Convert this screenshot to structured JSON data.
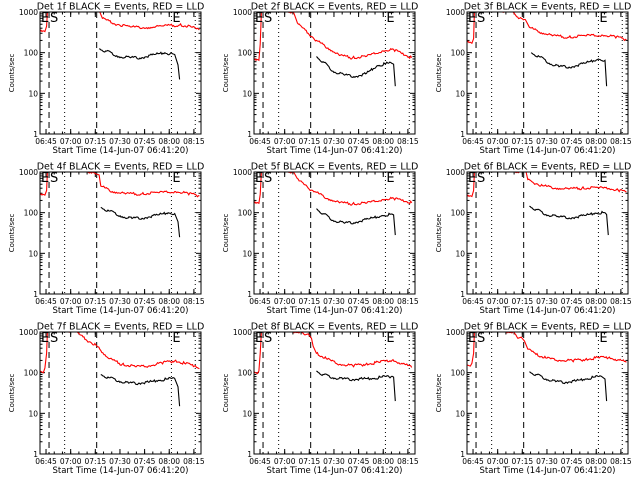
{
  "chart_data": [
    {
      "type": "line",
      "title": "Det 1f BLACK = Events, RED = LLD",
      "xlabel": "Start Time (14-Jun-07 06:41:20)",
      "ylabel": "Counts/sec",
      "yscale": "log",
      "ylim": [
        1,
        1000
      ],
      "ytick_labels": [
        "1",
        "10",
        "100",
        "1000"
      ],
      "xtick_labels": [
        "06:45",
        "07:00",
        "07:15",
        "07:30",
        "07:45",
        "08:00",
        "08:15"
      ],
      "series": [
        {
          "name": "LLD",
          "color": "#ff0000",
          "x_min": [
            0,
            3,
            4,
            4.5,
            5,
            36,
            38,
            45,
            55,
            65,
            75,
            85,
            92,
            97
          ],
          "values": [
            330,
            330,
            450,
            1000,
            1200,
            1100,
            700,
            520,
            430,
            410,
            450,
            480,
            430,
            360
          ]
        },
        {
          "name": "Events",
          "color": "#000000",
          "x_min": [
            36,
            40,
            48,
            55,
            62,
            70,
            76,
            79,
            82,
            84,
            85
          ],
          "values": [
            125,
            110,
            80,
            75,
            75,
            90,
            100,
            92,
            90,
            50,
            22
          ]
        }
      ],
      "markers": {
        "E_left": "E",
        "S": "S",
        "E_right": "E"
      }
    },
    {
      "type": "line",
      "title": "Det 2f BLACK = Events, RED = LLD",
      "xlabel": "Start Time (14-Jun-07 06:41:20)",
      "ylabel": "Counts/sec",
      "yscale": "log",
      "ylim": [
        1,
        1000
      ],
      "ytick_labels": [
        "1",
        "10",
        "100",
        "1000"
      ],
      "xtick_labels": [
        "06:45",
        "07:00",
        "07:15",
        "07:30",
        "07:45",
        "08:00",
        "08:15"
      ],
      "series": [
        {
          "name": "LLD",
          "color": "#ff0000",
          "x_min": [
            0,
            3,
            3.8,
            4.5,
            5,
            24,
            27,
            33,
            38,
            45,
            52,
            60,
            68,
            78,
            85,
            90,
            96
          ],
          "values": [
            65,
            65,
            160,
            1000,
            1200,
            1000,
            500,
            300,
            200,
            130,
            85,
            75,
            80,
            110,
            120,
            95,
            75
          ]
        },
        {
          "name": "Events",
          "color": "#000000",
          "x_min": [
            38,
            42,
            48,
            55,
            62,
            68,
            75,
            82,
            85,
            86
          ],
          "values": [
            80,
            60,
            35,
            28,
            26,
            30,
            48,
            55,
            52,
            15
          ]
        }
      ],
      "markers": {
        "E_left": "E",
        "S": "S",
        "E_right": "E"
      }
    },
    {
      "type": "line",
      "title": "Det 3f BLACK = Events, RED = LLD",
      "xlabel": "Start Time (14-Jun-07 06:41:20)",
      "ylabel": "Counts/sec",
      "yscale": "log",
      "ylim": [
        1,
        1000
      ],
      "ytick_labels": [
        "1",
        "10",
        "100",
        "1000"
      ],
      "xtick_labels": [
        "06:45",
        "07:00",
        "07:15",
        "07:30",
        "07:45",
        "08:00",
        "08:15"
      ],
      "series": [
        {
          "name": "LLD",
          "color": "#ff0000",
          "x_min": [
            0,
            3,
            4,
            4.5,
            5,
            28,
            32,
            36,
            38,
            44,
            52,
            62,
            72,
            82,
            90,
            97
          ],
          "values": [
            180,
            170,
            220,
            1000,
            1200,
            1000,
            700,
            600,
            420,
            320,
            260,
            240,
            260,
            270,
            250,
            210
          ]
        },
        {
          "name": "Events",
          "color": "#000000",
          "x_min": [
            39,
            44,
            50,
            56,
            64,
            72,
            80,
            84,
            85
          ],
          "values": [
            100,
            80,
            55,
            45,
            45,
            55,
            70,
            65,
            15
          ]
        }
      ],
      "markers": {
        "E_left": "E",
        "S": "S",
        "E_right": "E"
      }
    },
    {
      "type": "line",
      "title": "Det 4f BLACK = Events, RED = LLD",
      "xlabel": "Start Time (14-Jun-07 06:41:20)",
      "ylabel": "Counts/sec",
      "yscale": "log",
      "ylim": [
        1,
        1000
      ],
      "ytick_labels": [
        "1",
        "10",
        "100",
        "1000"
      ],
      "xtick_labels": [
        "06:45",
        "07:00",
        "07:15",
        "07:30",
        "07:45",
        "08:00",
        "08:15"
      ],
      "series": [
        {
          "name": "LLD",
          "color": "#ff0000",
          "x_min": [
            0,
            3,
            4,
            4.5,
            5,
            32,
            34,
            36,
            37,
            44,
            52,
            62,
            72,
            82,
            90,
            97
          ],
          "values": [
            270,
            270,
            350,
            1000,
            1200,
            1000,
            900,
            850,
            450,
            330,
            290,
            290,
            310,
            330,
            300,
            260
          ]
        },
        {
          "name": "Events",
          "color": "#000000",
          "x_min": [
            37,
            42,
            50,
            56,
            64,
            72,
            78,
            82,
            84,
            85
          ],
          "values": [
            135,
            110,
            80,
            72,
            75,
            88,
            100,
            95,
            60,
            25
          ]
        }
      ],
      "markers": {
        "E_left": "E",
        "S": "S",
        "E_right": "E"
      }
    },
    {
      "type": "line",
      "title": "Det 5f BLACK = Events, RED = LLD",
      "xlabel": "Start Time (14-Jun-07 06:41:20)",
      "ylabel": "Counts/sec",
      "yscale": "log",
      "ylim": [
        1,
        1000
      ],
      "ytick_labels": [
        "1",
        "10",
        "100",
        "1000"
      ],
      "xtick_labels": [
        "06:45",
        "07:00",
        "07:15",
        "07:30",
        "07:45",
        "08:00",
        "08:15"
      ],
      "series": [
        {
          "name": "LLD",
          "color": "#ff0000",
          "x_min": [
            0,
            3,
            3.8,
            4.5,
            5,
            24,
            28,
            33,
            37,
            45,
            52,
            60,
            68,
            78,
            85,
            90,
            96
          ],
          "values": [
            170,
            170,
            280,
            1000,
            1200,
            1000,
            600,
            400,
            330,
            220,
            175,
            165,
            170,
            210,
            225,
            200,
            175
          ]
        },
        {
          "name": "Events",
          "color": "#000000",
          "x_min": [
            38,
            42,
            48,
            55,
            62,
            70,
            78,
            84,
            85,
            86
          ],
          "values": [
            125,
            95,
            65,
            55,
            58,
            70,
            85,
            92,
            88,
            28
          ]
        }
      ],
      "markers": {
        "E_left": "E",
        "S": "S",
        "E_right": "E"
      }
    },
    {
      "type": "line",
      "title": "Det 6f BLACK = Events, RED = LLD",
      "xlabel": "Start Time (14-Jun-07 06:41:20)",
      "ylabel": "Counts/sec",
      "yscale": "log",
      "ylim": [
        1,
        1000
      ],
      "ytick_labels": [
        "1",
        "10",
        "100",
        "1000"
      ],
      "xtick_labels": [
        "06:45",
        "07:00",
        "07:15",
        "07:30",
        "07:45",
        "08:00",
        "08:15"
      ],
      "series": [
        {
          "name": "LLD",
          "color": "#ff0000",
          "x_min": [
            0,
            3,
            4,
            4.5,
            5,
            36,
            37,
            40,
            46,
            54,
            62,
            70,
            80,
            86,
            92,
            97
          ],
          "values": [
            250,
            250,
            350,
            1000,
            1200,
            1000,
            650,
            560,
            460,
            400,
            380,
            400,
            410,
            390,
            360,
            320
          ]
        },
        {
          "name": "Events",
          "color": "#000000",
          "x_min": [
            38,
            42,
            48,
            56,
            64,
            72,
            78,
            84,
            85,
            86
          ],
          "values": [
            145,
            120,
            90,
            78,
            75,
            85,
            98,
            100,
            90,
            28
          ]
        }
      ],
      "markers": {
        "E_left": "E",
        "S": "S",
        "E_right": "E"
      }
    },
    {
      "type": "line",
      "title": "Det 7f BLACK = Events, RED = LLD",
      "xlabel": "Start Time (14-Jun-07 06:41:20)",
      "ylabel": "Counts/sec",
      "yscale": "log",
      "ylim": [
        1,
        1000
      ],
      "ytick_labels": [
        "1",
        "10",
        "100",
        "1000"
      ],
      "xtick_labels": [
        "06:45",
        "07:00",
        "07:15",
        "07:30",
        "07:45",
        "08:00",
        "08:15"
      ],
      "series": [
        {
          "name": "LLD",
          "color": "#ff0000",
          "x_min": [
            0,
            2,
            3,
            4,
            4.5,
            5,
            22,
            28,
            34,
            37,
            42,
            50,
            58,
            66,
            74,
            82,
            88,
            94,
            97
          ],
          "values": [
            110,
            100,
            130,
            300,
            1000,
            1200,
            1000,
            650,
            480,
            350,
            220,
            160,
            140,
            145,
            175,
            195,
            170,
            145,
            125
          ]
        },
        {
          "name": "Events",
          "color": "#000000",
          "x_min": [
            37,
            42,
            48,
            54,
            60,
            66,
            72,
            78,
            82,
            84,
            85
          ],
          "values": [
            90,
            75,
            62,
            55,
            55,
            58,
            65,
            70,
            72,
            45,
            15
          ]
        }
      ],
      "markers": {
        "E_left": "E",
        "S": "S",
        "E_right": "E"
      }
    },
    {
      "type": "line",
      "title": "Det 8f BLACK = Events, RED = LLD",
      "xlabel": "Start Time (14-Jun-07 06:41:20)",
      "ylabel": "Counts/sec",
      "yscale": "log",
      "ylim": [
        1,
        1000
      ],
      "ytick_labels": [
        "1",
        "10",
        "100",
        "1000"
      ],
      "xtick_labels": [
        "06:45",
        "07:00",
        "07:15",
        "07:30",
        "07:45",
        "08:00",
        "08:15"
      ],
      "series": [
        {
          "name": "LLD",
          "color": "#ff0000",
          "x_min": [
            0,
            2,
            3,
            3.8,
            4.5,
            5,
            28,
            31,
            33,
            35,
            36,
            38,
            44,
            52,
            60,
            68,
            76,
            84,
            90,
            96
          ],
          "values": [
            105,
            95,
            110,
            300,
            1000,
            1200,
            1000,
            850,
            900,
            700,
            450,
            300,
            220,
            160,
            150,
            160,
            180,
            200,
            170,
            135
          ]
        },
        {
          "name": "Events",
          "color": "#000000",
          "x_min": [
            38,
            42,
            48,
            54,
            60,
            66,
            72,
            78,
            84,
            85,
            86
          ],
          "values": [
            110,
            90,
            75,
            70,
            68,
            70,
            72,
            78,
            82,
            78,
            20
          ]
        }
      ],
      "markers": {
        "E_left": "E",
        "S": "S",
        "E_right": "E"
      }
    },
    {
      "type": "line",
      "title": "Det 9f BLACK = Events, RED = LLD",
      "xlabel": "Start Time (14-Jun-07 06:41:20)",
      "ylabel": "Counts/sec",
      "yscale": "log",
      "ylim": [
        1,
        1000
      ],
      "ytick_labels": [
        "1",
        "10",
        "100",
        "1000"
      ],
      "xtick_labels": [
        "06:45",
        "07:00",
        "07:15",
        "07:30",
        "07:45",
        "08:00",
        "08:15"
      ],
      "series": [
        {
          "name": "LLD",
          "color": "#ff0000",
          "x_min": [
            0,
            2,
            3,
            4,
            4.5,
            5,
            28,
            31,
            33,
            35,
            37,
            42,
            48,
            56,
            64,
            72,
            80,
            86,
            92,
            97
          ],
          "values": [
            155,
            145,
            170,
            300,
            1000,
            1200,
            1000,
            700,
            750,
            600,
            380,
            280,
            230,
            200,
            200,
            210,
            235,
            230,
            210,
            180
          ]
        },
        {
          "name": "Events",
          "color": "#000000",
          "x_min": [
            38,
            42,
            48,
            54,
            60,
            66,
            72,
            78,
            82,
            84,
            85
          ],
          "values": [
            105,
            90,
            70,
            60,
            58,
            62,
            70,
            78,
            80,
            70,
            20
          ]
        }
      ],
      "markers": {
        "E_left": "E",
        "S": "S",
        "E_right": "E"
      }
    }
  ],
  "shared": {
    "x_range_min_from_start": [
      0,
      98
    ],
    "xtick_min_from_start": [
      3.67,
      18.67,
      33.67,
      48.67,
      63.67,
      78.67,
      93.67
    ],
    "dashed_lines_min": [
      5.5,
      34.5
    ],
    "dotted_lines_min": [
      15,
      80,
      94.5
    ]
  }
}
